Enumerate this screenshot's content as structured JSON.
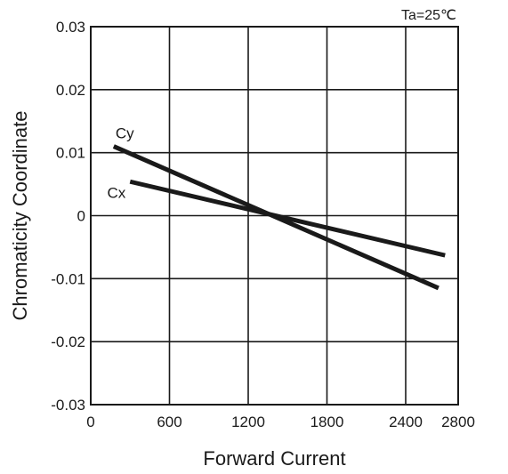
{
  "chart_data": {
    "type": "line",
    "title": "",
    "annotation": "Ta=25℃",
    "xlabel": "Forward Current",
    "ylabel": "Chromaticity Coordinate",
    "xlim": [
      0,
      2800
    ],
    "ylim": [
      -0.03,
      0.03
    ],
    "x_ticks": [
      0,
      600,
      1200,
      1800,
      2400,
      2800
    ],
    "x_tick_labels": [
      "0",
      "600",
      "1200",
      "1800",
      "2400",
      "2800"
    ],
    "y_ticks": [
      0.03,
      0.02,
      0.01,
      0,
      -0.01,
      -0.02,
      -0.03
    ],
    "y_tick_labels": [
      "0.03",
      "0.02",
      "0.01",
      "0",
      "-0.01",
      "-0.02",
      "-0.03"
    ],
    "grid": true,
    "series": [
      {
        "name": "Cy",
        "x": [
          175,
          2650
        ],
        "y": [
          0.011,
          -0.0115
        ]
      },
      {
        "name": "Cx",
        "x": [
          300,
          2700
        ],
        "y": [
          0.0054,
          -0.0063
        ]
      }
    ]
  },
  "colors": {
    "line": "#1a1a1a",
    "grid": "#1a1a1a",
    "background": "#ffffff"
  }
}
